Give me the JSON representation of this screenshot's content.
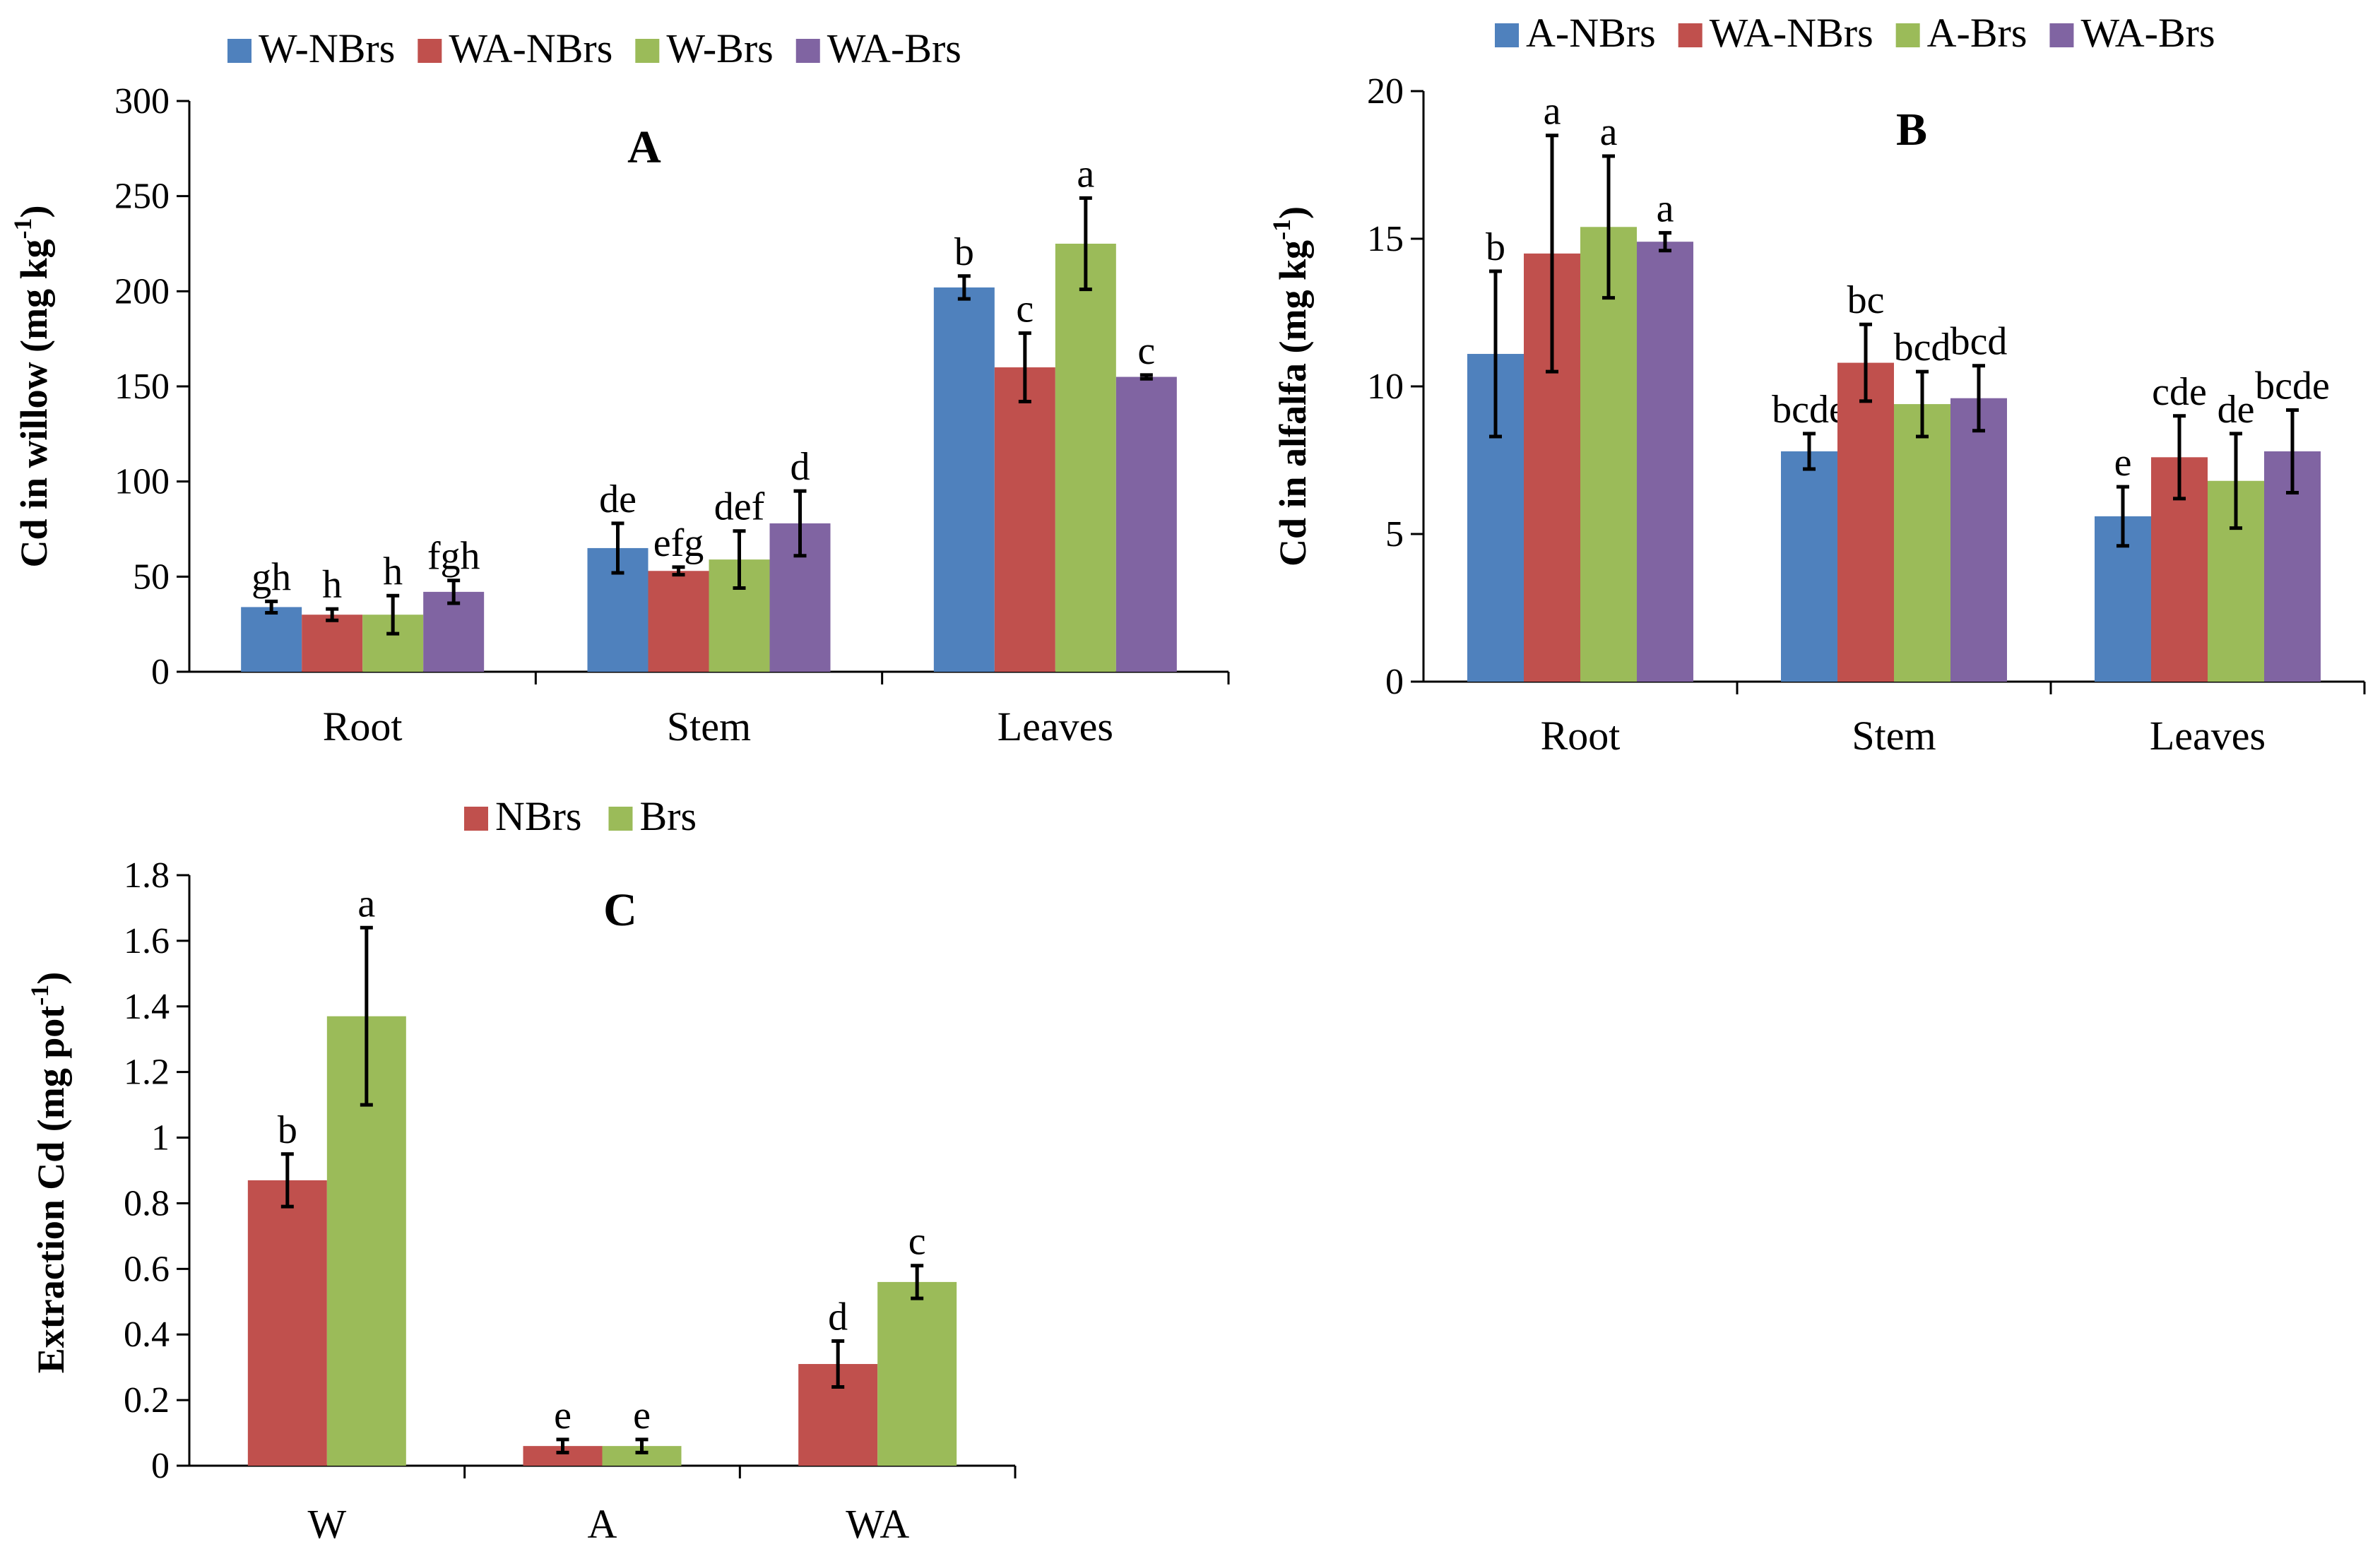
{
  "chart_data": [
    {
      "type": "bar",
      "panel_label": "A",
      "ylabel": "Cd in willow (mg kg",
      "ylabel_sup": "-1",
      "ylabel_close": ")",
      "ylim": [
        0,
        300
      ],
      "yticks": [
        "0",
        "50",
        "100",
        "150",
        "200",
        "250",
        "300"
      ],
      "categories": [
        "Root",
        "Stem",
        "Leaves"
      ],
      "series": [
        {
          "name": "W-NBrs",
          "color": "#4f81bd",
          "values": [
            34,
            65,
            202
          ],
          "errors": [
            3,
            13,
            6
          ],
          "letters": [
            "gh",
            "de",
            "b"
          ]
        },
        {
          "name": "WA-NBrs",
          "color": "#c0504d",
          "values": [
            30,
            53,
            160
          ],
          "errors": [
            3,
            2,
            18
          ],
          "letters": [
            "h",
            "efg",
            "c"
          ]
        },
        {
          "name": "W-Brs",
          "color": "#9bbb59",
          "values": [
            30,
            59,
            225
          ],
          "errors": [
            10,
            15,
            24
          ],
          "letters": [
            "h",
            "def",
            "a"
          ]
        },
        {
          "name": "WA-Brs",
          "color": "#8064a2",
          "values": [
            42,
            78,
            155
          ],
          "errors": [
            6,
            17,
            1
          ],
          "letters": [
            "fgh",
            "d",
            "c"
          ]
        }
      ]
    },
    {
      "type": "bar",
      "panel_label": "B",
      "ylabel": "Cd in alfalfa (mg kg",
      "ylabel_sup": "-1",
      "ylabel_close": ")",
      "ylim": [
        0,
        20
      ],
      "yticks": [
        "0",
        "5",
        "10",
        "15",
        "20"
      ],
      "categories": [
        "Root",
        "Stem",
        "Leaves"
      ],
      "series": [
        {
          "name": "A-NBrs",
          "color": "#4f81bd",
          "values": [
            11.1,
            7.8,
            5.6
          ],
          "errors": [
            2.8,
            0.6,
            1.0
          ],
          "letters": [
            "b",
            "bcde",
            "e"
          ]
        },
        {
          "name": "WA-NBrs",
          "color": "#c0504d",
          "values": [
            14.5,
            10.8,
            7.6
          ],
          "errors": [
            4.0,
            1.3,
            1.4
          ],
          "letters": [
            "a",
            "bc",
            "cde"
          ]
        },
        {
          "name": "A-Brs",
          "color": "#9bbb59",
          "values": [
            15.4,
            9.4,
            6.8
          ],
          "errors": [
            2.4,
            1.1,
            1.6
          ],
          "letters": [
            "a",
            "bcd",
            "de"
          ]
        },
        {
          "name": "WA-Brs",
          "color": "#8064a2",
          "values": [
            14.9,
            9.6,
            7.8
          ],
          "errors": [
            0.3,
            1.1,
            1.4
          ],
          "letters": [
            "a",
            "bcd",
            "bcde"
          ]
        }
      ]
    },
    {
      "type": "bar",
      "panel_label": "C",
      "ylabel": "Extraction Cd (mg pot",
      "ylabel_sup": "-1",
      "ylabel_close": ")",
      "ylim": [
        0,
        1.8
      ],
      "yticks": [
        "0",
        "0.2",
        "0.4",
        "0.6",
        "0.8",
        "1",
        "1.2",
        "1.4",
        "1.6",
        "1.8"
      ],
      "categories": [
        "W",
        "A",
        "WA"
      ],
      "series": [
        {
          "name": "NBrs",
          "color": "#c0504d",
          "values": [
            0.87,
            0.06,
            0.31
          ],
          "errors": [
            0.08,
            0.02,
            0.07
          ],
          "letters": [
            "b",
            "e",
            "d"
          ]
        },
        {
          "name": "Brs",
          "color": "#9bbb59",
          "values": [
            1.37,
            0.06,
            0.56
          ],
          "errors": [
            0.27,
            0.02,
            0.05
          ],
          "letters": [
            "a",
            "e",
            "c"
          ]
        }
      ]
    }
  ]
}
